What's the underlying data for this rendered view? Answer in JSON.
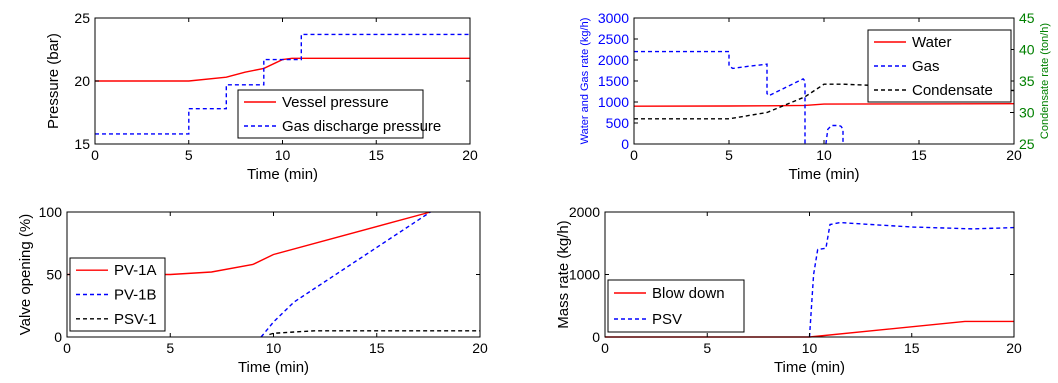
{
  "chart_data": [
    {
      "id": "top-left",
      "type": "line",
      "xlabel": "Time (min)",
      "ylabel": "Pressure (bar)",
      "xlim": [
        0,
        20
      ],
      "ylim": [
        15,
        25
      ],
      "xticks": [
        0,
        5,
        10,
        15,
        20
      ],
      "yticks": [
        15,
        20,
        25
      ],
      "legend_position": "bottom-right",
      "series": [
        {
          "name": "Vessel pressure",
          "color": "#ff0000",
          "dash": "solid",
          "x": [
            0,
            5,
            7,
            8,
            9,
            10,
            10.5,
            11,
            20
          ],
          "y": [
            20,
            20,
            20.3,
            20.7,
            21.0,
            21.7,
            21.8,
            21.8,
            21.8
          ]
        },
        {
          "name": "Gas discharge pressure",
          "color": "#0000ff",
          "dash": "dashed",
          "x": [
            0,
            5,
            5,
            7,
            7,
            9,
            9,
            11,
            11,
            20
          ],
          "y": [
            15.8,
            15.8,
            17.8,
            17.8,
            19.7,
            19.7,
            21.7,
            21.7,
            23.7,
            23.7
          ]
        }
      ]
    },
    {
      "id": "top-right",
      "type": "line",
      "xlabel": "Time (min)",
      "ylabel": "Water and Gas rate (kg/h)",
      "ylabel_right": "Condensate rate (ton/h)",
      "ylabel_color": "#0000ff",
      "ylabel_right_color": "#008000",
      "xlim": [
        0,
        20
      ],
      "ylim": [
        0,
        3000
      ],
      "ylim_right": [
        25,
        45
      ],
      "xticks": [
        0,
        5,
        10,
        15,
        20
      ],
      "yticks": [
        0,
        500,
        1000,
        1500,
        2000,
        2500,
        3000
      ],
      "yticks_right": [
        25,
        30,
        35,
        40,
        45
      ],
      "legend_position": "top-right",
      "series": [
        {
          "name": "Water",
          "color": "#ff0000",
          "dash": "solid",
          "axis": "left",
          "x": [
            0,
            5,
            7,
            9,
            10,
            15,
            20
          ],
          "y": [
            900,
            905,
            910,
            920,
            950,
            955,
            960
          ]
        },
        {
          "name": "Gas",
          "color": "#0000ff",
          "dash": "dashed",
          "axis": "left",
          "x": [
            0,
            5,
            5,
            5.2,
            6,
            7,
            7,
            7.1,
            8,
            8.9,
            9,
            9,
            null,
            10.1,
            10.2,
            10.4,
            10.8,
            10.9,
            11,
            11
          ],
          "y": [
            2200,
            2200,
            1850,
            1800,
            1850,
            1900,
            1200,
            1150,
            1350,
            1550,
            1500,
            0,
            null,
            0,
            350,
            440,
            440,
            420,
            350,
            0
          ]
        },
        {
          "name": "Condensate",
          "color": "#000000",
          "dash": "dashed",
          "axis": "right",
          "x": [
            0,
            5,
            7,
            9,
            10,
            11,
            15,
            20
          ],
          "y": [
            29.0,
            29.0,
            30.0,
            32.5,
            34.5,
            34.5,
            34.0,
            33.5
          ]
        }
      ]
    },
    {
      "id": "bottom-left",
      "type": "line",
      "xlabel": "Time (min)",
      "ylabel": "Valve opening (%)",
      "xlim": [
        0,
        20
      ],
      "ylim": [
        0,
        100
      ],
      "xticks": [
        0,
        5,
        10,
        15,
        20
      ],
      "yticks": [
        0,
        50,
        100
      ],
      "legend_position": "bottom-left",
      "series": [
        {
          "name": "PV-1A",
          "color": "#ff0000",
          "dash": "solid",
          "x": [
            0,
            5,
            7,
            9,
            10,
            17.6
          ],
          "y": [
            50,
            50,
            52,
            58,
            66,
            100
          ]
        },
        {
          "name": "PV-1B",
          "color": "#0000ff",
          "dash": "dashed",
          "x": [
            9.4,
            10,
            11,
            17.6
          ],
          "y": [
            0,
            12,
            28,
            100
          ]
        },
        {
          "name": "PSV-1",
          "color": "#000000",
          "dash": "dashed",
          "x": [
            9.8,
            10,
            11,
            12,
            15,
            20
          ],
          "y": [
            2,
            3,
            4,
            5,
            5,
            5
          ]
        }
      ]
    },
    {
      "id": "bottom-right",
      "type": "line",
      "xlabel": "Time (min)",
      "ylabel": "Mass rate (kg/h)",
      "xlim": [
        0,
        20
      ],
      "ylim": [
        0,
        2000
      ],
      "xticks": [
        0,
        5,
        10,
        15,
        20
      ],
      "yticks": [
        0,
        1000,
        2000
      ],
      "legend_position": "bottom-left",
      "series": [
        {
          "name": "Blow down",
          "color": "#ff0000",
          "dash": "solid",
          "x": [
            0,
            10,
            17.6,
            20
          ],
          "y": [
            0,
            0,
            250,
            250
          ]
        },
        {
          "name": "PSV",
          "color": "#0000ff",
          "dash": "dashed",
          "x": [
            10,
            10.2,
            10.4,
            10.8,
            11,
            11.5,
            13,
            15,
            18,
            20
          ],
          "y": [
            0,
            1000,
            1400,
            1420,
            1800,
            1830,
            1800,
            1760,
            1730,
            1750
          ]
        }
      ]
    }
  ]
}
